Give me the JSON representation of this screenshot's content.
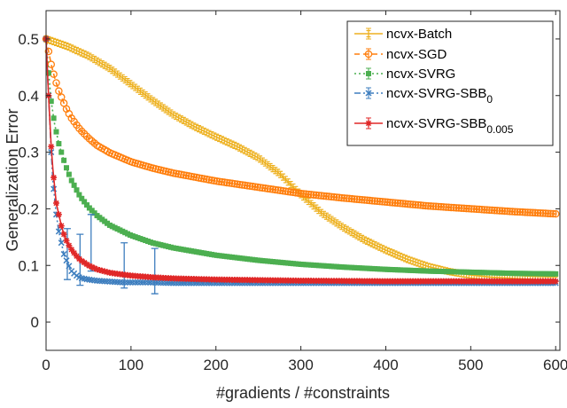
{
  "chart_data": {
    "type": "line",
    "xlabel": "#gradients / #constraints",
    "ylabel": "Generalization Error",
    "xlim": [
      0,
      605
    ],
    "ylim": [
      -0.05,
      0.55
    ],
    "xticks": [
      0,
      100,
      200,
      300,
      400,
      500,
      600
    ],
    "yticks": [
      0,
      0.1,
      0.2,
      0.3,
      0.4,
      0.5
    ],
    "xtick_labels": [
      "0",
      "100",
      "200",
      "300",
      "400",
      "500",
      "600"
    ],
    "ytick_labels": [
      "0",
      "0.1",
      "0.2",
      "0.3",
      "0.4",
      "0.5"
    ],
    "grid": false,
    "legend_position": "top-right",
    "series": [
      {
        "name": "ncvx-Batch",
        "legend": {
          "base": "ncvx-Batch",
          "sub": ""
        },
        "color": "#EDB120",
        "linestyle": "solid",
        "marker": "bar",
        "x": [
          0,
          25,
          50,
          75,
          100,
          125,
          150,
          175,
          200,
          225,
          250,
          275,
          300,
          325,
          350,
          375,
          400,
          425,
          450,
          475,
          500,
          525,
          550,
          575,
          600
        ],
        "y": [
          0.5,
          0.487,
          0.47,
          0.448,
          0.42,
          0.392,
          0.366,
          0.345,
          0.327,
          0.31,
          0.29,
          0.262,
          0.225,
          0.192,
          0.167,
          0.145,
          0.127,
          0.111,
          0.098,
          0.089,
          0.083,
          0.079,
          0.077,
          0.075,
          0.074
        ]
      },
      {
        "name": "ncvx-SGD",
        "legend": {
          "base": "ncvx-SGD",
          "sub": ""
        },
        "color": "#FF7F0E",
        "linestyle": "dashed",
        "marker": "circle",
        "x": [
          0,
          3,
          6,
          10,
          15,
          20,
          25,
          30,
          40,
          50,
          60,
          75,
          100,
          125,
          150,
          200,
          250,
          300,
          350,
          400,
          450,
          500,
          550,
          600
        ],
        "y": [
          0.5,
          0.478,
          0.455,
          0.432,
          0.408,
          0.39,
          0.373,
          0.36,
          0.34,
          0.325,
          0.312,
          0.299,
          0.283,
          0.272,
          0.263,
          0.249,
          0.238,
          0.227,
          0.219,
          0.212,
          0.205,
          0.2,
          0.195,
          0.191
        ]
      },
      {
        "name": "ncvx-SVRG",
        "legend": {
          "base": "ncvx-SVRG",
          "sub": ""
        },
        "color": "#4CAF50",
        "linestyle": "dotted",
        "marker": "square",
        "x": [
          0,
          3,
          6,
          10,
          15,
          20,
          25,
          30,
          40,
          50,
          60,
          75,
          100,
          125,
          150,
          200,
          250,
          300,
          350,
          400,
          450,
          500,
          550,
          600
        ],
        "y": [
          0.5,
          0.44,
          0.39,
          0.35,
          0.315,
          0.29,
          0.268,
          0.25,
          0.222,
          0.203,
          0.188,
          0.171,
          0.153,
          0.14,
          0.131,
          0.118,
          0.109,
          0.102,
          0.097,
          0.093,
          0.09,
          0.088,
          0.086,
          0.085
        ]
      },
      {
        "name": "ncvx-SVRG-SBB0",
        "legend": {
          "base": "ncvx-SVRG-SBB",
          "sub": "0"
        },
        "color": "#3F7FBF",
        "linestyle": "dashdot",
        "marker": "cross",
        "x": [
          0,
          2,
          4,
          6,
          8,
          10,
          12,
          15,
          18,
          21,
          25,
          30,
          35,
          40,
          50,
          60,
          70,
          80,
          90,
          100,
          120,
          150,
          200,
          300,
          400,
          500,
          600
        ],
        "y": [
          0.5,
          0.43,
          0.37,
          0.3,
          0.25,
          0.22,
          0.19,
          0.16,
          0.14,
          0.12,
          0.105,
          0.09,
          0.083,
          0.078,
          0.075,
          0.073,
          0.072,
          0.071,
          0.07,
          0.07,
          0.07,
          0.069,
          0.069,
          0.069,
          0.069,
          0.069,
          0.069
        ],
        "error_bars": [
          {
            "x": 25,
            "y": 0.12,
            "err": 0.045
          },
          {
            "x": 40,
            "y": 0.11,
            "err": 0.045
          },
          {
            "x": 53,
            "y": 0.14,
            "err": 0.05
          },
          {
            "x": 92,
            "y": 0.1,
            "err": 0.04
          },
          {
            "x": 128,
            "y": 0.09,
            "err": 0.04
          }
        ]
      },
      {
        "name": "ncvx-SVRG-SBB0.005",
        "legend": {
          "base": "ncvx-SVRG-SBB",
          "sub": "0.005"
        },
        "color": "#E02828",
        "linestyle": "solid",
        "marker": "star",
        "x": [
          0,
          2,
          4,
          6,
          8,
          10,
          12,
          15,
          18,
          21,
          25,
          30,
          35,
          40,
          50,
          60,
          75,
          100,
          125,
          150,
          200,
          250,
          300,
          400,
          500,
          600
        ],
        "y": [
          0.5,
          0.43,
          0.37,
          0.31,
          0.27,
          0.24,
          0.21,
          0.19,
          0.17,
          0.155,
          0.14,
          0.128,
          0.118,
          0.11,
          0.1,
          0.093,
          0.087,
          0.082,
          0.079,
          0.077,
          0.075,
          0.074,
          0.073,
          0.072,
          0.072,
          0.072
        ]
      }
    ]
  }
}
